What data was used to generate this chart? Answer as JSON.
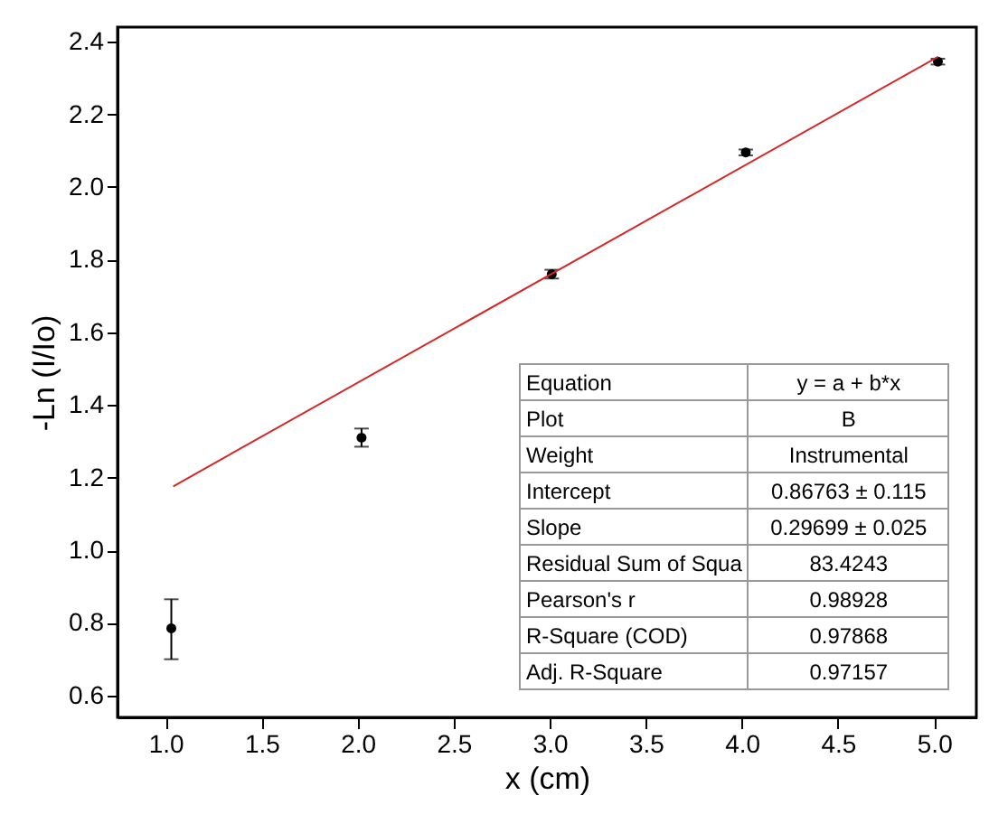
{
  "chart_data": {
    "type": "scatter",
    "xlabel": "x (cm)",
    "ylabel": "-Ln (I/Io)",
    "xlim": [
      0.75,
      5.22
    ],
    "ylim": [
      0.54,
      2.44
    ],
    "xticks": [
      {
        "value": 1,
        "label": "1.0"
      },
      1.5,
      {
        "value": 2,
        "label": "2.0"
      },
      2.5,
      {
        "value": 3,
        "label": "3.0"
      },
      3.5,
      {
        "value": 4,
        "label": "4.0"
      },
      4.5,
      {
        "value": 5,
        "label": "5.0"
      }
    ],
    "yticks": [
      0.6,
      0.8,
      {
        "value": 1,
        "label": "1.0"
      },
      1.2,
      1.4,
      1.6,
      1.8,
      {
        "value": 2,
        "label": "2.0"
      },
      2.2,
      2.4
    ],
    "grid": false,
    "series": [
      {
        "color": "#000000",
        "marker": "circle",
        "x": [
          1.03,
          2.02,
          3.01,
          4.02,
          5.02
        ],
        "values": [
          0.785,
          1.31,
          1.76,
          2.095,
          2.345
        ],
        "errors": [
          [
            0.7,
            0.865
          ],
          0.025,
          0.012,
          0.008,
          0.008
        ]
      },
      {
        "type": "line",
        "color": "#d62728",
        "x": [
          1.04,
          5.02
        ],
        "values": [
          1.176,
          2.358
        ]
      }
    ],
    "annotations": [
      "Equation",
      "y = a + b*x",
      "Plot",
      "B",
      "Weight",
      "Instrumental",
      "Intercept",
      "0.86763 ± 0.115",
      "Slope",
      "0.29699 ± 0.025",
      "Residual Sum of Squa",
      "83.4243",
      "Pearson's r",
      "0.98928",
      "R-Square (COD)",
      "0.97868",
      "Adj. R-Square",
      "0.97157"
    ]
  }
}
